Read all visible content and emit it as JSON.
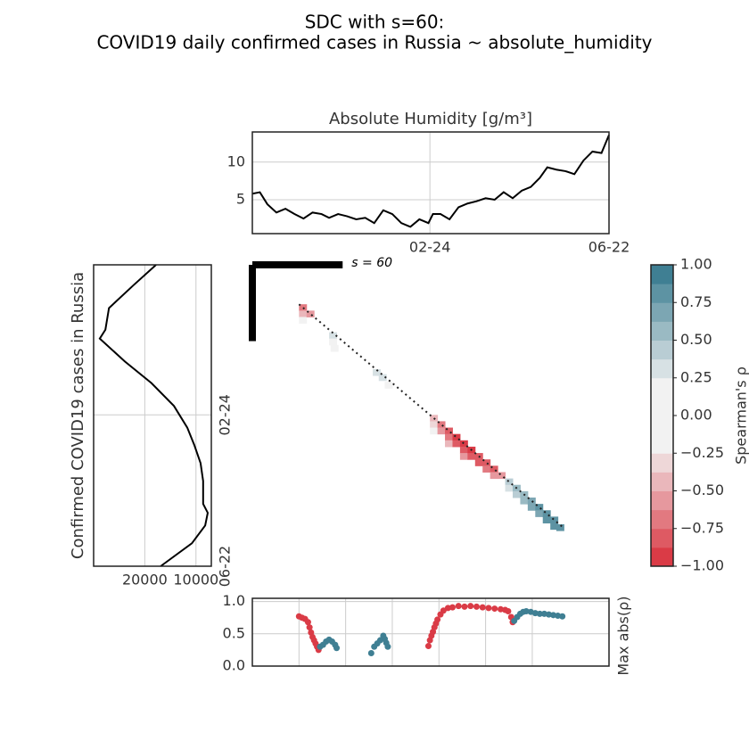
{
  "title": "SDC with s=60:",
  "subtitle": "COVID19 daily confirmed cases in Russia ~ absolute_humidity",
  "chart_data": [
    {
      "type": "line",
      "title": "Absolute Humidity [g/m³]",
      "color": "#000000",
      "grid": true,
      "x": [
        0,
        5,
        10,
        16,
        22,
        28,
        34,
        40,
        46,
        51,
        57,
        63,
        69,
        75,
        81,
        87,
        93,
        99,
        105,
        111,
        117,
        120,
        125,
        131,
        137,
        143,
        149,
        155,
        161,
        167,
        173,
        179,
        185,
        191,
        196,
        202,
        208,
        214,
        220,
        226,
        232,
        237
      ],
      "values": [
        5.8,
        6,
        4.4,
        3.3,
        3.8,
        3.1,
        2.5,
        3.3,
        3.1,
        2.6,
        3.1,
        2.8,
        2.4,
        2.6,
        1.9,
        3.6,
        3.1,
        1.9,
        1.4,
        2.4,
        1.9,
        3.1,
        3.1,
        2.4,
        4,
        4.5,
        4.8,
        5.2,
        5,
        6,
        5.2,
        6.2,
        6.7,
        7.9,
        9.3,
        9,
        8.8,
        8.4,
        10.2,
        11.4,
        11.2,
        13.6
      ],
      "xlim": [
        0,
        237
      ],
      "xticks": [
        {
          "value": 118,
          "label": "02-24"
        },
        {
          "value": 237,
          "label": "06-22"
        }
      ],
      "ylim": [
        0.5,
        14
      ],
      "yticks": [
        5,
        10
      ]
    },
    {
      "type": "line",
      "orientation": "vertical",
      "ylabel": "Confirmed COVID19 cases in Russia",
      "color": "#000000",
      "grid": true,
      "x": [
        0,
        16,
        34,
        51,
        58,
        76,
        93,
        111,
        128,
        142,
        156,
        170,
        188,
        195,
        205,
        219,
        237
      ],
      "values": [
        17800,
        22200,
        27000,
        27700,
        28800,
        23900,
        18700,
        14300,
        11700,
        10300,
        9100,
        8600,
        8600,
        7700,
        8200,
        10800,
        16900
      ],
      "xlim": [
        30000,
        7000
      ],
      "xticks": [
        20000,
        10000
      ],
      "ylim": [
        0,
        237
      ],
      "yticks": [
        {
          "value": 118,
          "label": "02-24"
        },
        {
          "value": 237,
          "label": "06-22"
        }
      ]
    },
    {
      "type": "heatmap",
      "xlim": [
        0,
        237
      ],
      "ylim": [
        0,
        237
      ],
      "window": 60,
      "annotation": "s = 60",
      "x": [
        31,
        31,
        31,
        36,
        51,
        51,
        52,
        80,
        84,
        88,
        118,
        118,
        118,
        123,
        123,
        128,
        128,
        128,
        133,
        133,
        138,
        138,
        138,
        143,
        143,
        148,
        148,
        153,
        153,
        158,
        158,
        163,
        168,
        168,
        173,
        173,
        178,
        178,
        183,
        183,
        188,
        188,
        193,
        193,
        198,
        198,
        202
      ],
      "y": [
        31,
        36,
        41,
        36,
        53,
        58,
        63,
        82,
        86,
        92,
        118,
        123,
        128,
        123,
        128,
        128,
        133,
        138,
        133,
        138,
        138,
        143,
        148,
        143,
        148,
        148,
        153,
        153,
        158,
        158,
        163,
        163,
        168,
        173,
        173,
        178,
        178,
        183,
        183,
        188,
        188,
        193,
        193,
        198,
        198,
        203,
        204
      ],
      "values": [
        -0.7,
        -0.45,
        -0.2,
        -0.5,
        0.3,
        0.2,
        0.15,
        0.3,
        0.35,
        0.2,
        -0.45,
        -0.3,
        -0.2,
        -0.7,
        -0.5,
        -0.85,
        -0.7,
        -0.4,
        -0.9,
        -0.85,
        -0.9,
        -0.85,
        -0.6,
        -0.9,
        -0.85,
        -0.85,
        -0.8,
        -0.8,
        -0.7,
        -0.75,
        -0.6,
        -0.5,
        0.4,
        0.3,
        0.5,
        0.45,
        0.6,
        0.55,
        0.7,
        0.65,
        0.75,
        0.7,
        0.8,
        0.75,
        0.8,
        0.75,
        0.8
      ]
    },
    {
      "type": "colorbar",
      "label": "Spearman's ρ",
      "low": "#da3b46",
      "mid": "#f2f2f2",
      "high": "#3f7f93",
      "ylim": [
        -1,
        1
      ],
      "yticks": [
        {
          "value": -1,
          "label": "−1.00"
        },
        {
          "value": -0.75,
          "label": "−0.75"
        },
        {
          "value": -0.5,
          "label": "−0.50"
        },
        {
          "value": -0.25,
          "label": "−0.25"
        },
        {
          "value": 0,
          "label": "0.00"
        },
        {
          "value": 0.25,
          "label": "0.25"
        },
        {
          "value": 0.5,
          "label": "0.50"
        },
        {
          "value": 0.75,
          "label": "0.75"
        },
        {
          "value": 1,
          "label": "1.00"
        }
      ]
    },
    {
      "type": "scatter",
      "ylabel": "Max abs(ρ)",
      "grid": true,
      "xlim": [
        0,
        237
      ],
      "xticks": [
        31,
        62,
        93,
        124,
        155,
        186
      ],
      "ylim": [
        0,
        1.05
      ],
      "yticks": [
        {
          "value": 0,
          "label": "0.0"
        },
        {
          "value": 0.5,
          "label": "0.5"
        },
        {
          "value": 1,
          "label": "1.0"
        }
      ],
      "series": [
        {
          "color": "#da3b46",
          "x": [
            31,
            33,
            35,
            37,
            38,
            39,
            40,
            41,
            42,
            43,
            44
          ],
          "values": [
            0.77,
            0.75,
            0.73,
            0.68,
            0.6,
            0.52,
            0.45,
            0.4,
            0.35,
            0.3,
            0.25
          ]
        },
        {
          "color": "#3f7f93",
          "x": [
            45,
            47,
            49,
            51,
            53,
            55,
            56
          ],
          "values": [
            0.3,
            0.33,
            0.38,
            0.41,
            0.38,
            0.33,
            0.28
          ]
        },
        {
          "color": "#3f7f93",
          "x": [
            79,
            81,
            83,
            85,
            87,
            88,
            89,
            90
          ],
          "values": [
            0.2,
            0.3,
            0.35,
            0.4,
            0.47,
            0.42,
            0.36,
            0.3
          ]
        },
        {
          "color": "#da3b46",
          "x": [
            117,
            118,
            119,
            120,
            121,
            122,
            123,
            125,
            127,
            130,
            133,
            137,
            141,
            145,
            149,
            153,
            157,
            161,
            165,
            168,
            170,
            172,
            173
          ],
          "values": [
            0.31,
            0.4,
            0.47,
            0.53,
            0.6,
            0.66,
            0.72,
            0.8,
            0.86,
            0.9,
            0.91,
            0.93,
            0.92,
            0.93,
            0.92,
            0.91,
            0.9,
            0.89,
            0.88,
            0.87,
            0.85,
            0.76,
            0.68
          ]
        },
        {
          "color": "#3f7f93",
          "x": [
            174,
            176,
            178,
            180,
            182,
            185,
            188,
            191,
            194,
            197,
            200,
            203,
            206
          ],
          "values": [
            0.7,
            0.76,
            0.81,
            0.84,
            0.85,
            0.84,
            0.82,
            0.81,
            0.81,
            0.8,
            0.79,
            0.78,
            0.77
          ]
        }
      ]
    }
  ]
}
